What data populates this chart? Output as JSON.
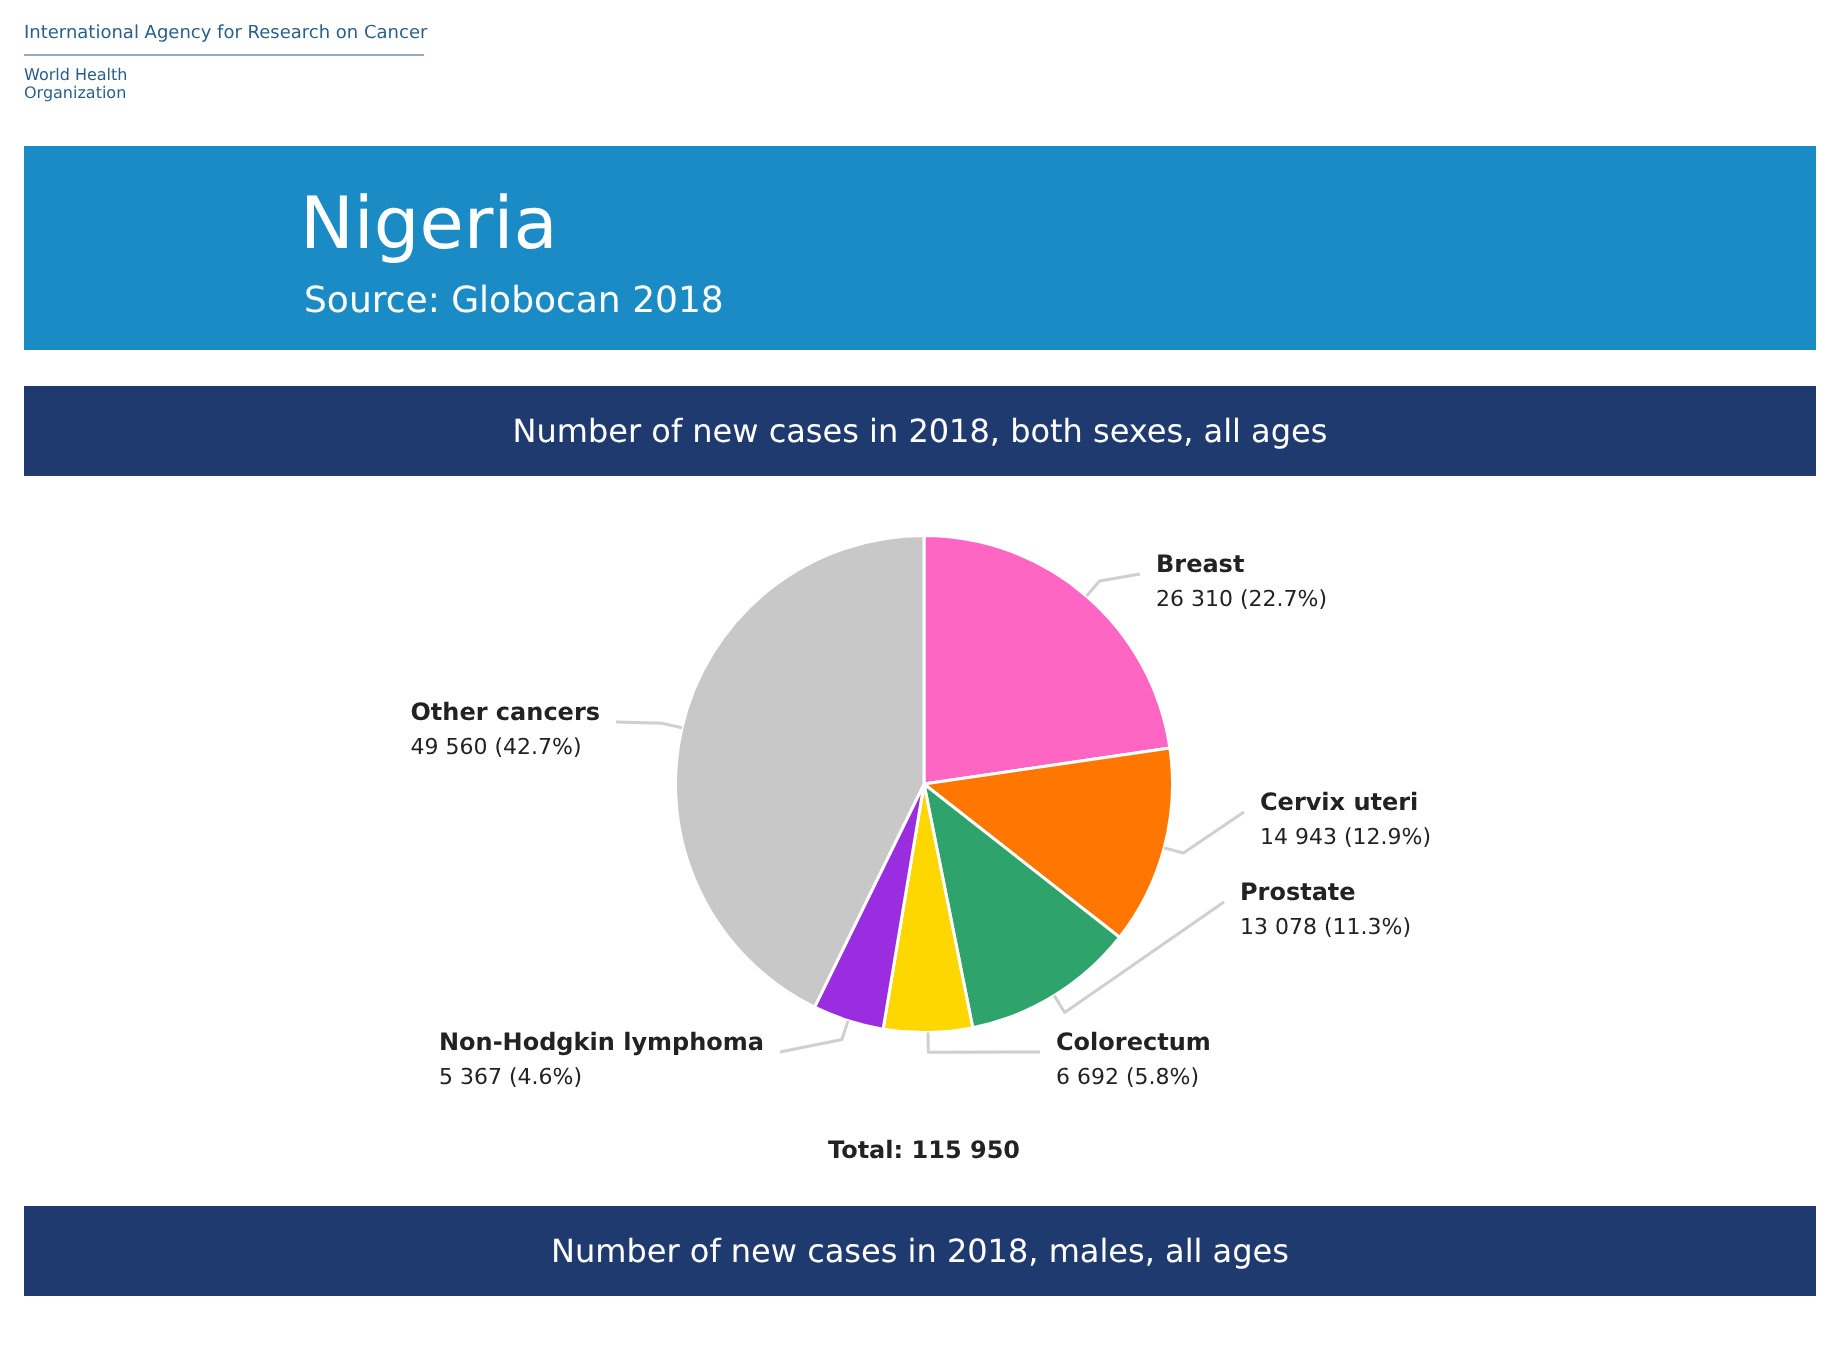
{
  "chart_data": {
    "type": "pie",
    "title": "Nigeria",
    "subtitle": "Source: Globocan 2018",
    "annotations": [
      "International Agency for Research on Cancer",
      "World Health Organization",
      "Number of new cases in 2018, both sexes, all ages",
      "Total: 115 950",
      "Number of new cases in 2018, males, all ages"
    ],
    "categories": [
      "Breast",
      "Cervix uteri",
      "Prostate",
      "Colorectum",
      "Non-Hodgkin lymphoma",
      "Other cancers"
    ],
    "values": [
      26310,
      14943,
      13078,
      6692,
      5367,
      49560
    ],
    "value_labels": [
      "26 310 (22.7%)",
      "14 943 (12.9%)",
      "13 078 (11.3%)",
      "6 692 (5.8%)",
      "5 367 (4.6%)",
      "49 560 (42.7%)"
    ],
    "colors": [
      "#ff66c4",
      "#ff7700",
      "#2ea36b",
      "#ffd700",
      "#9b2de0",
      "#c8c8c8"
    ],
    "legend": false
  }
}
